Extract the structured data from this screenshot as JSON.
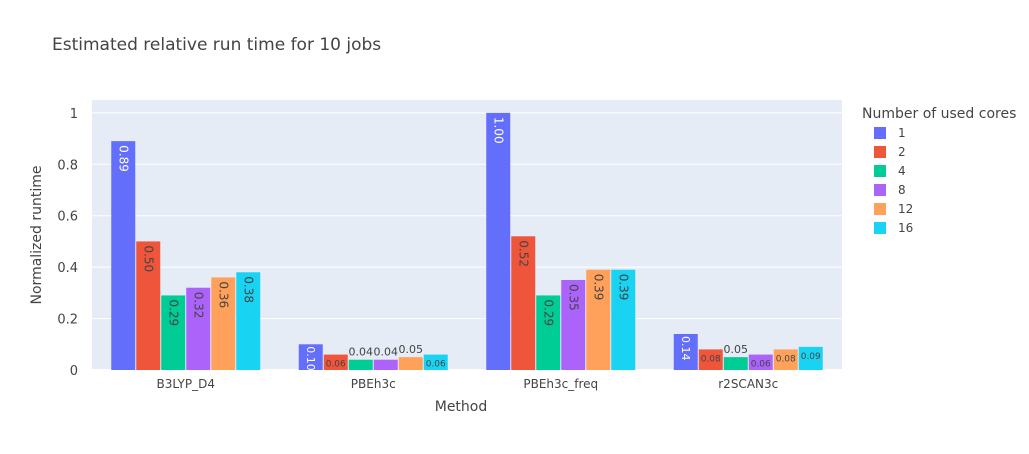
{
  "chart_data": {
    "type": "bar",
    "title": "Estimated relative run time for 10 jobs",
    "xlabel": "Method",
    "ylabel": "Normalized runtime",
    "ylim": [
      0,
      1.05
    ],
    "yticks": [
      0,
      0.2,
      0.4,
      0.6,
      0.8,
      1
    ],
    "ytick_labels": [
      "0",
      "0.2",
      "0.4",
      "0.6",
      "0.8",
      "1"
    ],
    "grid": true,
    "legend_title": "Number of used cores",
    "legend_position": "right",
    "categories": [
      "B3LYP_D4",
      "PBEh3c",
      "PBEh3c_freq",
      "r2SCAN3c"
    ],
    "series": [
      {
        "name": "1",
        "color": "#636efa",
        "values": [
          0.89,
          0.1,
          1.0,
          0.14
        ],
        "labels": [
          "0.89",
          "0.10",
          "1.00",
          "0.14"
        ]
      },
      {
        "name": "2",
        "color": "#ef553b",
        "values": [
          0.5,
          0.06,
          0.52,
          0.08
        ],
        "labels": [
          "0.50",
          "0.06",
          "0.52",
          "0.08"
        ]
      },
      {
        "name": "4",
        "color": "#00cc96",
        "values": [
          0.29,
          0.04,
          0.29,
          0.05
        ],
        "labels": [
          "0.29",
          "0.04",
          "0.29",
          "0.05"
        ]
      },
      {
        "name": "8",
        "color": "#ab63fa",
        "values": [
          0.32,
          0.04,
          0.35,
          0.06
        ],
        "labels": [
          "0.32",
          "0.04",
          "0.35",
          "0.06"
        ]
      },
      {
        "name": "12",
        "color": "#ffa15a",
        "values": [
          0.36,
          0.05,
          0.39,
          0.08
        ],
        "labels": [
          "0.36",
          "0.05",
          "0.39",
          "0.08"
        ]
      },
      {
        "name": "16",
        "color": "#19d3f3",
        "values": [
          0.38,
          0.06,
          0.39,
          0.09
        ],
        "labels": [
          "0.38",
          "0.06",
          "0.39",
          "0.09"
        ]
      }
    ],
    "colors": {
      "plot_background": "#e5ecf6",
      "gridline": "#ffffff",
      "text": "#444444",
      "title": "#444444"
    }
  }
}
